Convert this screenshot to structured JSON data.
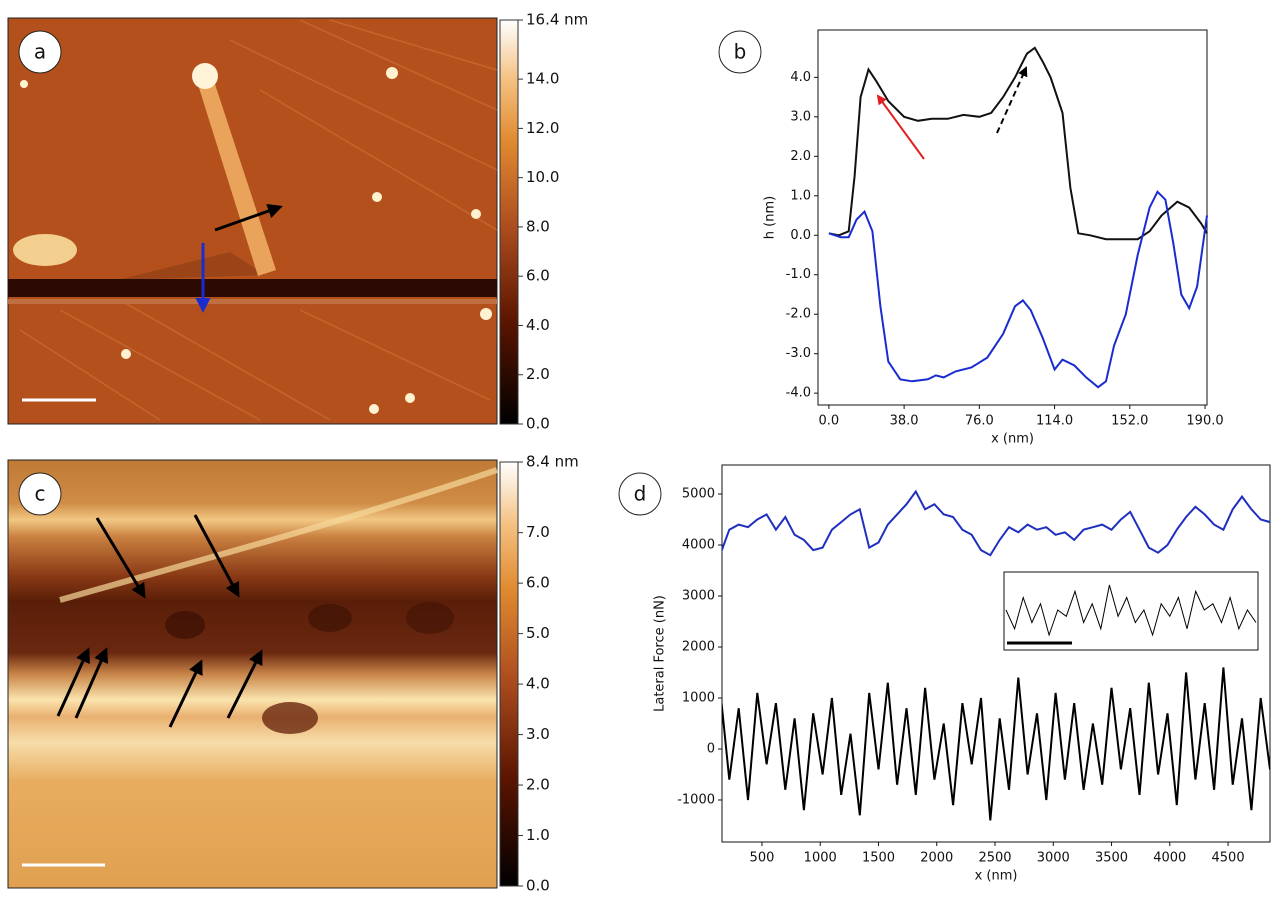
{
  "chart_data": [
    {
      "type": "image",
      "panel": "a",
      "clim": [
        0,
        16.4
      ],
      "cticks": [
        {
          "value": 0,
          "label": "0.0"
        },
        {
          "value": 2,
          "label": "2.0"
        },
        {
          "value": 4,
          "label": "4.0"
        },
        {
          "value": 6,
          "label": "6.0"
        },
        {
          "value": 8,
          "label": "8.0"
        },
        {
          "value": 10,
          "label": "10.0"
        },
        {
          "value": 12,
          "label": "12.0"
        },
        {
          "value": 14,
          "label": "14.0"
        },
        {
          "value": 16.4,
          "label": "16.4 nm"
        }
      ]
    },
    {
      "type": "line",
      "panel": "b",
      "xlabel": "x (nm)",
      "ylabel": "h (nm)",
      "xlim": [
        -5.5,
        191
      ],
      "ylim": [
        -4.3,
        5.2
      ],
      "xticks": [
        {
          "value": 0,
          "label": "0.0"
        },
        {
          "value": 38,
          "label": "38.0"
        },
        {
          "value": 76,
          "label": "76.0"
        },
        {
          "value": 114,
          "label": "114.0"
        },
        {
          "value": 152,
          "label": "152.0"
        },
        {
          "value": 190,
          "label": "190.0"
        }
      ],
      "yticks": [
        {
          "value": -4,
          "label": "-4.0"
        },
        {
          "value": -3,
          "label": "-3.0"
        },
        {
          "value": -2,
          "label": "-2.0"
        },
        {
          "value": -1,
          "label": "-1.0"
        },
        {
          "value": 0,
          "label": "0.0"
        },
        {
          "value": 1,
          "label": "1.0"
        },
        {
          "value": 2,
          "label": "2.0"
        },
        {
          "value": 3,
          "label": "3.0"
        },
        {
          "value": 4,
          "label": "4.0"
        }
      ],
      "series": [
        {
          "color": "#111111",
          "x": [
            0,
            5,
            10,
            13,
            16,
            20,
            24,
            30,
            38,
            45,
            52,
            60,
            68,
            76,
            82,
            88,
            94,
            100,
            104,
            108,
            112,
            118,
            122,
            126,
            132,
            140,
            150,
            156,
            162,
            168,
            176,
            182,
            188,
            191
          ],
          "values": [
            0.05,
            0,
            0.1,
            1.5,
            3.5,
            4.2,
            3.9,
            3.4,
            3.0,
            2.9,
            2.95,
            2.95,
            3.05,
            3.0,
            3.1,
            3.5,
            4.0,
            4.6,
            4.75,
            4.4,
            4.0,
            3.1,
            1.2,
            0.05,
            0.0,
            -0.1,
            -0.1,
            -0.1,
            0.1,
            0.5,
            0.85,
            0.7,
            0.3,
            0.05
          ]
        },
        {
          "color": "#1a2ccf",
          "x": [
            0,
            6,
            10,
            14,
            18,
            22,
            26,
            30,
            36,
            42,
            50,
            54,
            58,
            64,
            72,
            80,
            88,
            94,
            98,
            102,
            108,
            114,
            118,
            124,
            130,
            136,
            140,
            144,
            150,
            156,
            162,
            166,
            170,
            174,
            178,
            182,
            186,
            191
          ],
          "values": [
            0.05,
            -0.05,
            -0.05,
            0.4,
            0.6,
            0.1,
            -1.8,
            -3.2,
            -3.65,
            -3.7,
            -3.65,
            -3.55,
            -3.6,
            -3.45,
            -3.35,
            -3.1,
            -2.5,
            -1.8,
            -1.65,
            -1.9,
            -2.6,
            -3.4,
            -3.15,
            -3.3,
            -3.6,
            -3.85,
            -3.7,
            -2.8,
            -2.0,
            -0.5,
            0.7,
            1.1,
            0.9,
            -0.2,
            -1.5,
            -1.85,
            -1.3,
            0.5
          ]
        }
      ]
    },
    {
      "type": "image",
      "panel": "c",
      "clim": [
        0,
        8.4
      ],
      "cticks": [
        {
          "value": 0,
          "label": "0.0"
        },
        {
          "value": 1,
          "label": "1.0"
        },
        {
          "value": 2,
          "label": "2.0"
        },
        {
          "value": 3,
          "label": "3.0"
        },
        {
          "value": 4,
          "label": "4.0"
        },
        {
          "value": 5,
          "label": "5.0"
        },
        {
          "value": 6,
          "label": "6.0"
        },
        {
          "value": 7,
          "label": "7.0"
        },
        {
          "value": 8.4,
          "label": "8.4 nm"
        }
      ]
    },
    {
      "type": "line",
      "panel": "d",
      "xlabel": "x (nm)",
      "ylabel": "Lateral Force (nN)",
      "xlim": [
        157,
        4860
      ],
      "ylim": [
        -1824,
        5569
      ],
      "xticks": [
        500,
        1000,
        1500,
        2000,
        2500,
        3000,
        3500,
        4000,
        4500
      ],
      "yticks": [
        -1000,
        0,
        1000,
        2000,
        3000,
        4000,
        5000
      ],
      "x": [
        140,
        220,
        300,
        380,
        460,
        540,
        620,
        700,
        780,
        860,
        940,
        1020,
        1100,
        1180,
        1260,
        1340,
        1420,
        1500,
        1580,
        1660,
        1740,
        1820,
        1900,
        1980,
        2060,
        2140,
        2220,
        2300,
        2380,
        2460,
        2540,
        2620,
        2700,
        2780,
        2860,
        2940,
        3020,
        3100,
        3180,
        3260,
        3340,
        3420,
        3500,
        3580,
        3660,
        3740,
        3820,
        3900,
        3980,
        4060,
        4140,
        4220,
        4300,
        4380,
        4460,
        4540,
        4620,
        4700,
        4780,
        4860
      ],
      "series": [
        {
          "color": "#1f2fbf",
          "values": [
            3800,
            4300,
            4400,
            4350,
            4500,
            4600,
            4300,
            4550,
            4200,
            4100,
            3900,
            3950,
            4300,
            4450,
            4600,
            4700,
            3950,
            4050,
            4400,
            4600,
            4800,
            5050,
            4700,
            4800,
            4600,
            4550,
            4300,
            4200,
            3900,
            3800,
            4100,
            4350,
            4250,
            4400,
            4300,
            4350,
            4200,
            4250,
            4100,
            4300,
            4350,
            4400,
            4300,
            4500,
            4650,
            4300,
            3950,
            3850,
            4000,
            4300,
            4550,
            4750,
            4600,
            4400,
            4300,
            4700,
            4950,
            4700,
            4500,
            4450
          ]
        },
        {
          "color": "#000000",
          "values": [
            1200,
            -600,
            800,
            -1000,
            1100,
            -300,
            900,
            -800,
            600,
            -1200,
            700,
            -500,
            1000,
            -900,
            300,
            -1300,
            1100,
            -400,
            1300,
            -700,
            800,
            -900,
            1200,
            -600,
            500,
            -1100,
            900,
            -300,
            1000,
            -1400,
            600,
            -800,
            1400,
            -500,
            700,
            -1000,
            1100,
            -600,
            900,
            -800,
            500,
            -700,
            1200,
            -400,
            800,
            -900,
            1300,
            -500,
            700,
            -1100,
            1500,
            -600,
            900,
            -800,
            1600,
            -700,
            600,
            -1200,
            1000,
            -400
          ]
        }
      ],
      "inset": {
        "color": "#000000",
        "values": [
          0.5,
          0.2,
          0.7,
          0.3,
          0.6,
          0.1,
          0.5,
          0.4,
          0.8,
          0.3,
          0.6,
          0.2,
          0.9,
          0.4,
          0.7,
          0.3,
          0.5,
          0.1,
          0.6,
          0.4,
          0.7,
          0.2,
          0.8,
          0.5,
          0.6,
          0.3,
          0.7,
          0.2,
          0.5,
          0.3
        ]
      }
    }
  ]
}
